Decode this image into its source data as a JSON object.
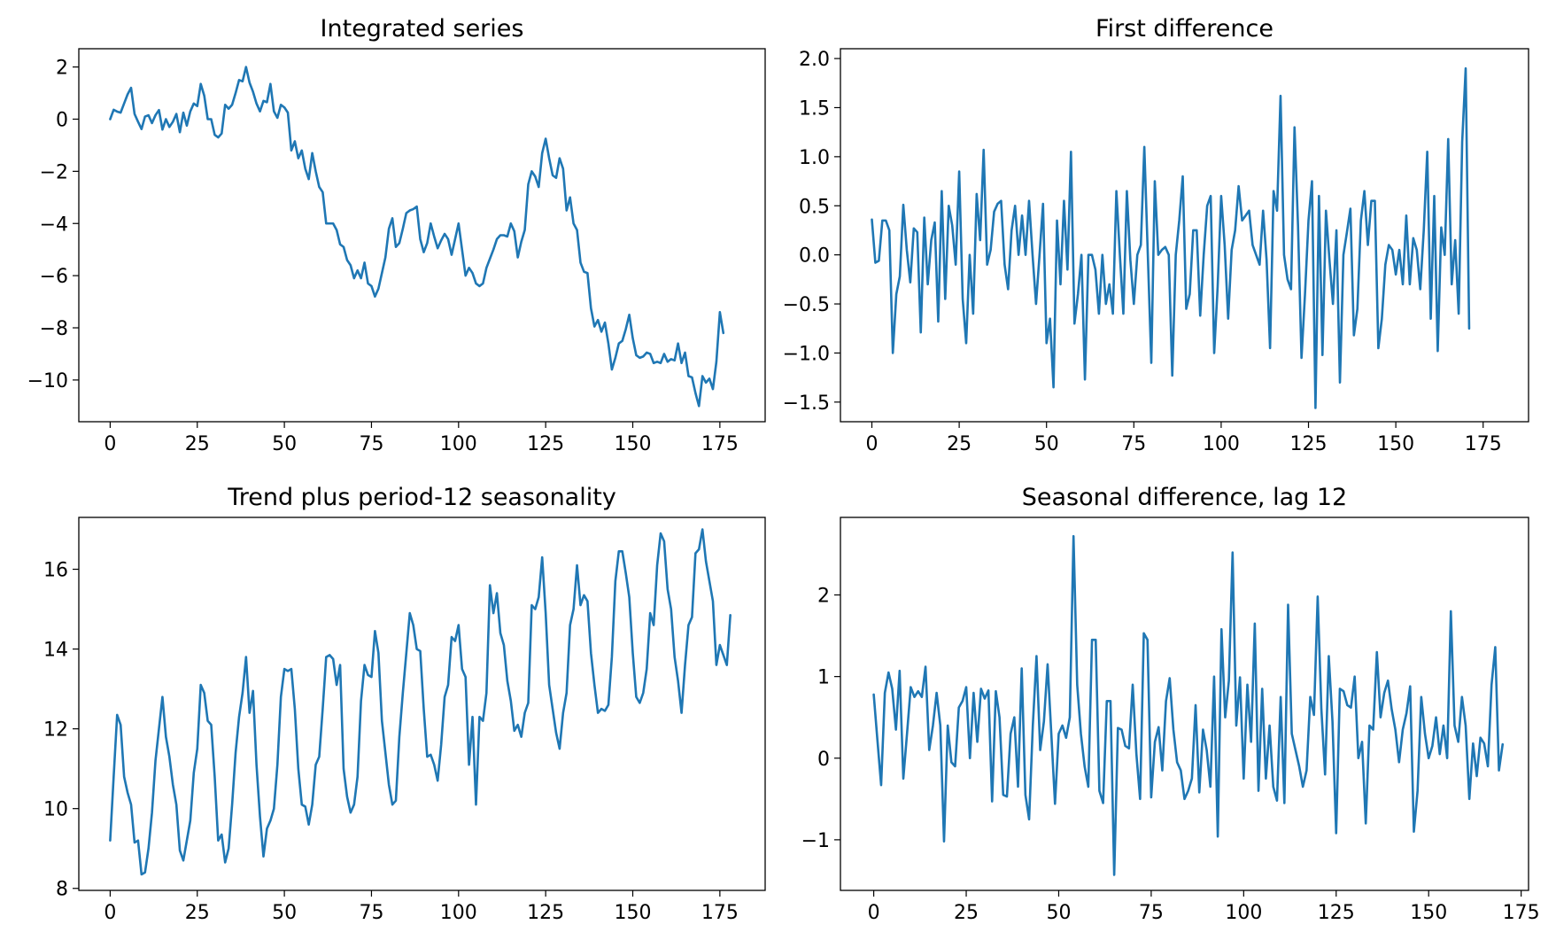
{
  "figure": {
    "accent_color": "#1f77b4"
  },
  "chart_data": [
    {
      "type": "line",
      "title": "Integrated series",
      "xlabel": "",
      "ylabel": "",
      "xlim": [
        -9,
        188
      ],
      "ylim": [
        -11.6,
        2.7
      ],
      "xticks": [
        0,
        25,
        50,
        75,
        100,
        125,
        150,
        175
      ],
      "yticks": [
        -10,
        -8,
        -6,
        -4,
        -2,
        0,
        2
      ],
      "grid": false,
      "color": "#1f77b4",
      "x_start": 0,
      "values": [
        0.0,
        0.36,
        0.29,
        0.25,
        0.6,
        0.95,
        1.2,
        0.2,
        -0.1,
        -0.38,
        0.1,
        0.15,
        -0.15,
        0.15,
        0.35,
        -0.4,
        0.0,
        -0.3,
        -0.1,
        0.2,
        -0.5,
        0.25,
        -0.25,
        0.3,
        0.6,
        0.5,
        1.35,
        0.9,
        0.0,
        0.0,
        -0.6,
        -0.7,
        -0.55,
        0.55,
        0.4,
        0.55,
        1.0,
        1.5,
        1.45,
        2.0,
        1.4,
        1.05,
        0.6,
        0.3,
        0.7,
        0.65,
        1.35,
        0.3,
        0.05,
        0.55,
        0.45,
        0.25,
        -1.2,
        -0.85,
        -1.5,
        -1.2,
        -1.9,
        -2.3,
        -1.3,
        -2.0,
        -2.6,
        -2.8,
        -4.0,
        -4.0,
        -4.0,
        -4.25,
        -4.8,
        -4.9,
        -5.4,
        -5.6,
        -6.1,
        -5.8,
        -6.1,
        -5.5,
        -6.3,
        -6.4,
        -6.8,
        -6.5,
        -5.9,
        -5.3,
        -4.2,
        -3.8,
        -4.9,
        -4.75,
        -4.2,
        -3.6,
        -3.5,
        -3.45,
        -3.35,
        -4.6,
        -5.1,
        -4.75,
        -4.0,
        -4.5,
        -4.95,
        -4.65,
        -4.4,
        -4.6,
        -5.2,
        -4.6,
        -4.0,
        -5.0,
        -6.0,
        -5.7,
        -5.9,
        -6.3,
        -6.4,
        -6.3,
        -5.7,
        -5.35,
        -5.0,
        -4.6,
        -4.45,
        -4.45,
        -4.5,
        -4.0,
        -4.3,
        -5.3,
        -4.7,
        -4.25,
        -2.5,
        -2.0,
        -2.2,
        -2.6,
        -1.3,
        -0.75,
        -1.5,
        -2.15,
        -2.25,
        -1.5,
        -1.9,
        -3.5,
        -3.0,
        -4.0,
        -4.25,
        -5.5,
        -5.85,
        -5.9,
        -7.25,
        -7.95,
        -7.7,
        -8.15,
        -7.8,
        -8.6,
        -9.6,
        -9.15,
        -8.6,
        -8.5,
        -8.05,
        -7.5,
        -8.4,
        -9.05,
        -9.15,
        -9.1,
        -8.95,
        -9.0,
        -9.35,
        -9.3,
        -9.35,
        -9.0,
        -9.3,
        -9.2,
        -9.25,
        -8.6,
        -9.35,
        -8.95,
        -9.85,
        -9.9,
        -10.5,
        -11.0,
        -9.85,
        -10.1,
        -9.95,
        -10.35,
        -9.3,
        -7.4,
        -8.2
      ]
    },
    {
      "type": "line",
      "title": "First difference",
      "xlabel": "",
      "ylabel": "",
      "xlim": [
        -9,
        188
      ],
      "ylim": [
        -1.7,
        2.1
      ],
      "xticks": [
        0,
        25,
        50,
        75,
        100,
        125,
        150,
        175
      ],
      "yticks": [
        -1.5,
        -1.0,
        -0.5,
        0.0,
        0.5,
        1.0,
        1.5,
        2.0
      ],
      "grid": false,
      "color": "#1f77b4",
      "x_start": 0,
      "values": [
        0.36,
        -0.08,
        -0.06,
        0.35,
        0.35,
        0.25,
        -1.0,
        -0.4,
        -0.22,
        0.51,
        0.05,
        -0.28,
        0.27,
        0.23,
        -0.79,
        0.38,
        -0.3,
        0.15,
        0.33,
        -0.68,
        0.65,
        -0.45,
        0.5,
        0.3,
        -0.1,
        0.85,
        -0.45,
        -0.9,
        0.0,
        -0.6,
        0.62,
        0.15,
        1.07,
        -0.1,
        0.05,
        0.44,
        0.52,
        0.55,
        -0.1,
        -0.35,
        0.25,
        0.5,
        0.0,
        0.4,
        0.0,
        0.55,
        0.0,
        -0.5,
        0.0,
        0.52,
        -0.9,
        -0.65,
        -1.35,
        0.35,
        -0.3,
        0.55,
        -0.15,
        1.05,
        -0.7,
        -0.4,
        0.0,
        -1.27,
        0.0,
        0.0,
        -0.15,
        -0.6,
        0.0,
        -0.5,
        -0.3,
        -0.6,
        0.65,
        0.0,
        -0.6,
        0.65,
        -0.05,
        -0.5,
        0.0,
        0.1,
        1.1,
        0.0,
        -1.1,
        0.75,
        0.0,
        0.05,
        0.08,
        0.0,
        -1.23,
        0.0,
        0.35,
        0.8,
        -0.55,
        -0.4,
        0.25,
        0.25,
        -0.62,
        0.0,
        0.5,
        0.6,
        -1.0,
        -0.32,
        0.6,
        0.1,
        -0.65,
        0.05,
        0.25,
        0.7,
        0.35,
        0.4,
        0.45,
        0.1,
        0.0,
        -0.1,
        0.45,
        -0.05,
        -0.95,
        0.65,
        0.45,
        1.62,
        0.0,
        -0.25,
        -0.35,
        1.3,
        0.3,
        -1.05,
        -0.4,
        0.35,
        0.75,
        -1.56,
        0.6,
        -1.02,
        0.45,
        -0.05,
        -0.5,
        0.25,
        -1.3,
        0.0,
        0.23,
        0.47,
        -0.82,
        -0.55,
        0.35,
        0.65,
        0.1,
        0.55,
        0.55,
        -0.95,
        -0.65,
        -0.1,
        0.1,
        0.05,
        -0.2,
        0.05,
        -0.3,
        0.4,
        -0.3,
        0.17,
        0.05,
        -0.35,
        0.25,
        1.05,
        -0.65,
        0.6,
        -0.98,
        0.28,
        0.0,
        1.18,
        -0.3,
        0.15,
        -0.6,
        1.15,
        1.9,
        -0.75
      ]
    },
    {
      "type": "line",
      "title": "Trend plus period-12 seasonality",
      "xlabel": "",
      "ylabel": "",
      "xlim": [
        -9,
        188
      ],
      "ylim": [
        7.95,
        17.3
      ],
      "xticks": [
        0,
        25,
        50,
        75,
        100,
        125,
        150,
        175
      ],
      "yticks": [
        8,
        10,
        12,
        14,
        16
      ],
      "grid": false,
      "color": "#1f77b4",
      "x_start": 0,
      "values": [
        9.2,
        10.8,
        12.35,
        12.1,
        10.8,
        10.4,
        10.1,
        9.15,
        9.2,
        8.35,
        8.4,
        9.0,
        9.9,
        11.2,
        12.0,
        12.8,
        11.8,
        11.3,
        10.6,
        10.1,
        8.95,
        8.7,
        9.2,
        9.7,
        10.9,
        11.5,
        13.1,
        12.9,
        12.2,
        12.1,
        10.8,
        9.2,
        9.35,
        8.65,
        9.0,
        10.1,
        11.4,
        12.3,
        12.9,
        13.8,
        12.4,
        12.95,
        11.1,
        9.8,
        8.8,
        9.5,
        9.7,
        10.0,
        11.1,
        12.8,
        13.5,
        13.45,
        13.5,
        12.5,
        11.0,
        10.1,
        10.05,
        9.6,
        10.1,
        11.1,
        11.3,
        12.5,
        13.8,
        13.85,
        13.75,
        13.1,
        13.6,
        11.0,
        10.3,
        9.9,
        10.1,
        10.8,
        12.7,
        13.6,
        13.35,
        13.3,
        14.45,
        13.9,
        12.2,
        11.4,
        10.6,
        10.1,
        10.2,
        11.8,
        12.9,
        13.9,
        14.9,
        14.6,
        14.0,
        13.95,
        12.5,
        11.3,
        11.35,
        11.1,
        10.7,
        11.6,
        12.8,
        13.1,
        14.3,
        14.2,
        14.6,
        13.5,
        13.3,
        11.1,
        12.3,
        10.1,
        12.3,
        12.2,
        12.9,
        15.6,
        14.9,
        15.4,
        14.4,
        14.1,
        13.2,
        12.7,
        11.95,
        12.1,
        11.8,
        12.4,
        12.65,
        15.1,
        15.0,
        15.3,
        16.3,
        14.9,
        13.1,
        12.5,
        11.9,
        11.5,
        12.4,
        12.9,
        14.6,
        15.0,
        16.1,
        15.1,
        15.35,
        15.2,
        13.9,
        13.1,
        12.4,
        12.5,
        12.45,
        12.6,
        13.8,
        15.7,
        16.45,
        16.45,
        15.9,
        15.3,
        13.9,
        12.8,
        12.65,
        12.9,
        13.5,
        14.9,
        14.6,
        16.1,
        16.9,
        16.7,
        15.5,
        15.0,
        13.8,
        13.2,
        12.4,
        13.6,
        14.6,
        14.8,
        16.4,
        16.5,
        17.0,
        16.2,
        15.7,
        15.2,
        13.6,
        14.1,
        13.85,
        13.6,
        14.85
      ]
    },
    {
      "type": "line",
      "title": "Seasonal difference, lag 12",
      "xlabel": "",
      "ylabel": "",
      "xlim": [
        -9,
        177
      ],
      "ylim": [
        -1.62,
        2.95
      ],
      "xticks": [
        0,
        25,
        50,
        75,
        100,
        125,
        150,
        175
      ],
      "yticks": [
        -1,
        0,
        1,
        2
      ],
      "grid": false,
      "color": "#1f77b4",
      "x_start": 0,
      "values": [
        0.78,
        0.22,
        -0.33,
        0.8,
        1.05,
        0.85,
        0.35,
        1.07,
        -0.25,
        0.3,
        0.87,
        0.75,
        0.82,
        0.75,
        1.12,
        0.1,
        0.4,
        0.8,
        0.4,
        -1.02,
        0.4,
        -0.05,
        -0.1,
        0.62,
        0.7,
        0.87,
        0.0,
        0.8,
        0.2,
        0.85,
        0.73,
        0.83,
        -0.53,
        0.82,
        0.5,
        -0.45,
        -0.47,
        0.3,
        0.5,
        -0.35,
        1.1,
        -0.45,
        -0.75,
        0.4,
        1.25,
        0.1,
        0.45,
        1.15,
        0.3,
        -0.56,
        0.3,
        0.4,
        0.25,
        0.5,
        2.72,
        0.9,
        0.3,
        -0.1,
        -0.35,
        1.45,
        1.45,
        -0.4,
        -0.55,
        0.7,
        0.7,
        -1.43,
        0.37,
        0.35,
        0.15,
        0.12,
        0.9,
        0.05,
        -0.5,
        1.53,
        1.45,
        -0.48,
        0.2,
        0.38,
        -0.15,
        0.7,
        0.98,
        0.35,
        -0.05,
        -0.15,
        -0.5,
        -0.4,
        -0.25,
        0.65,
        -0.42,
        0.35,
        0.1,
        -0.35,
        1.0,
        -0.96,
        1.58,
        0.5,
        0.95,
        2.52,
        0.4,
        0.99,
        -0.25,
        0.9,
        0.2,
        1.65,
        -0.4,
        0.85,
        -0.25,
        0.4,
        -0.35,
        -0.52,
        0.75,
        -0.55,
        1.88,
        0.3,
        0.1,
        -0.1,
        -0.35,
        -0.15,
        0.75,
        0.53,
        1.98,
        0.6,
        -0.2,
        1.25,
        0.45,
        -0.92,
        0.85,
        0.82,
        0.65,
        0.62,
        1.0,
        0.0,
        0.2,
        -0.8,
        0.4,
        0.35,
        1.3,
        0.5,
        0.8,
        0.95,
        0.6,
        0.35,
        -0.05,
        0.35,
        0.55,
        0.88,
        -0.9,
        -0.4,
        0.75,
        0.3,
        0.0,
        0.15,
        0.5,
        0.05,
        0.4,
        0.0,
        1.8,
        0.4,
        0.2,
        0.75,
        0.4,
        -0.5,
        0.18,
        -0.22,
        0.25,
        0.18,
        -0.1,
        0.9,
        1.36,
        -0.15,
        0.17
      ]
    }
  ]
}
